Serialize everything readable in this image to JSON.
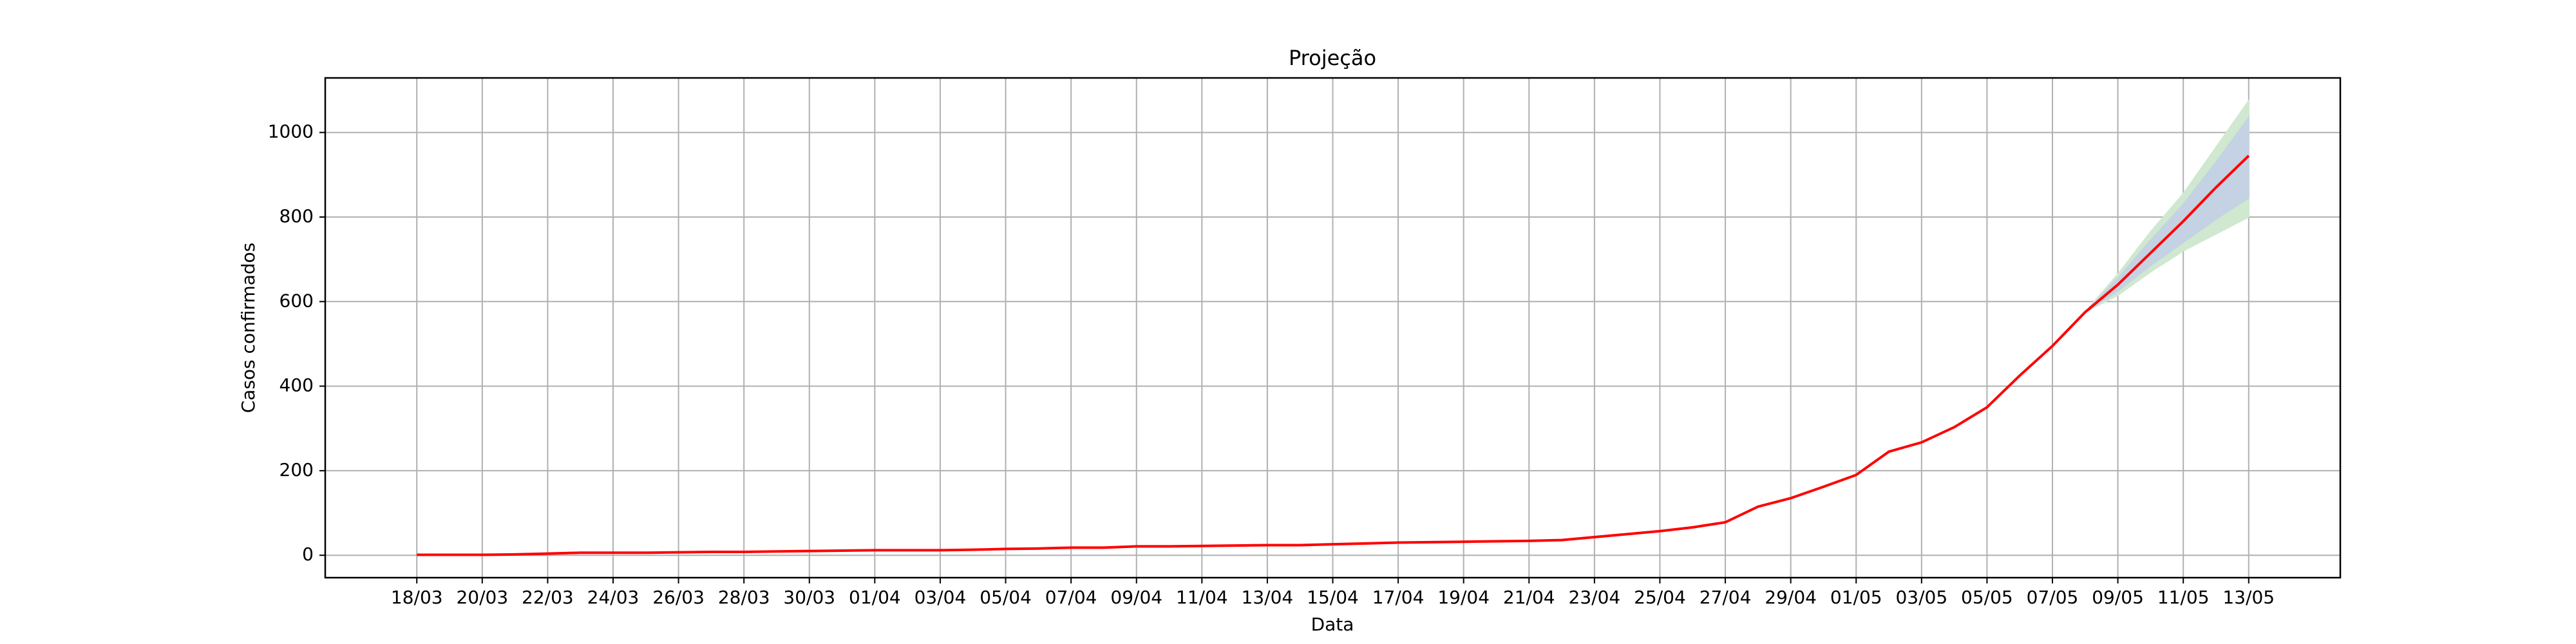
{
  "chart_data": {
    "type": "line",
    "title": "Projeção",
    "xlabel": "Data",
    "ylabel": "Casos confirmados",
    "categories": [
      "18/03",
      null,
      "20/03",
      null,
      "22/03",
      null,
      "24/03",
      null,
      "26/03",
      null,
      "28/03",
      null,
      "30/03",
      null,
      "01/04",
      null,
      "03/04",
      null,
      "05/04",
      null,
      "07/04",
      null,
      "09/04",
      null,
      "11/04",
      null,
      "13/04",
      null,
      "15/04",
      null,
      "17/04",
      null,
      "19/04",
      null,
      "21/04",
      null,
      "23/04",
      null,
      "25/04",
      null,
      "27/04",
      null,
      "29/04",
      null,
      "01/05",
      null,
      "03/05",
      null,
      "05/05",
      null,
      "07/05",
      null,
      "09/05",
      null,
      "11/05",
      null,
      "13/05"
    ],
    "series": [
      {
        "color": "#ff0000",
        "values": [
          1,
          1,
          1,
          2,
          4,
          6,
          6,
          6,
          7,
          8,
          8,
          9,
          10,
          11,
          12,
          12,
          12,
          13,
          15,
          16,
          18,
          18,
          21,
          21,
          22,
          23,
          24,
          24,
          26,
          28,
          30,
          31,
          32,
          33,
          34,
          36,
          43,
          50,
          57,
          66,
          78,
          115,
          135,
          162,
          190,
          245,
          267,
          303,
          350,
          425,
          495,
          575,
          640,
          715,
          790,
          870,
          945
        ]
      }
    ],
    "bands": [
      {
        "color": "#cfe8cf",
        "lower": [
          null,
          null,
          null,
          null,
          null,
          null,
          null,
          null,
          null,
          null,
          null,
          null,
          null,
          null,
          null,
          null,
          null,
          null,
          null,
          null,
          null,
          null,
          null,
          null,
          null,
          null,
          null,
          null,
          null,
          null,
          null,
          null,
          null,
          null,
          null,
          null,
          null,
          null,
          null,
          null,
          null,
          null,
          null,
          null,
          null,
          null,
          null,
          null,
          null,
          null,
          null,
          575,
          615,
          670,
          720,
          760,
          800
        ],
        "upper": [
          null,
          null,
          null,
          null,
          null,
          null,
          null,
          null,
          null,
          null,
          null,
          null,
          null,
          null,
          null,
          null,
          null,
          null,
          null,
          null,
          null,
          null,
          null,
          null,
          null,
          null,
          null,
          null,
          null,
          null,
          null,
          null,
          null,
          null,
          null,
          null,
          null,
          null,
          null,
          null,
          null,
          null,
          null,
          null,
          null,
          null,
          null,
          null,
          null,
          null,
          null,
          575,
          665,
          765,
          855,
          965,
          1075
        ]
      },
      {
        "color": "#c4d2e4",
        "lower": [
          null,
          null,
          null,
          null,
          null,
          null,
          null,
          null,
          null,
          null,
          null,
          null,
          null,
          null,
          null,
          null,
          null,
          null,
          null,
          null,
          null,
          null,
          null,
          null,
          null,
          null,
          null,
          null,
          null,
          null,
          null,
          null,
          null,
          null,
          null,
          null,
          null,
          null,
          null,
          null,
          null,
          null,
          null,
          null,
          null,
          null,
          null,
          null,
          null,
          null,
          null,
          575,
          625,
          685,
          740,
          795,
          845
        ],
        "upper": [
          null,
          null,
          null,
          null,
          null,
          null,
          null,
          null,
          null,
          null,
          null,
          null,
          null,
          null,
          null,
          null,
          null,
          null,
          null,
          null,
          null,
          null,
          null,
          null,
          null,
          null,
          null,
          null,
          null,
          null,
          null,
          null,
          null,
          null,
          null,
          null,
          null,
          null,
          null,
          null,
          null,
          null,
          null,
          null,
          null,
          null,
          null,
          null,
          null,
          null,
          null,
          575,
          655,
          745,
          830,
          930,
          1035
        ]
      }
    ],
    "ylim": [
      -53,
      1129
    ],
    "yticks": [
      0,
      200,
      400,
      600,
      800,
      1000
    ],
    "grid": true
  }
}
